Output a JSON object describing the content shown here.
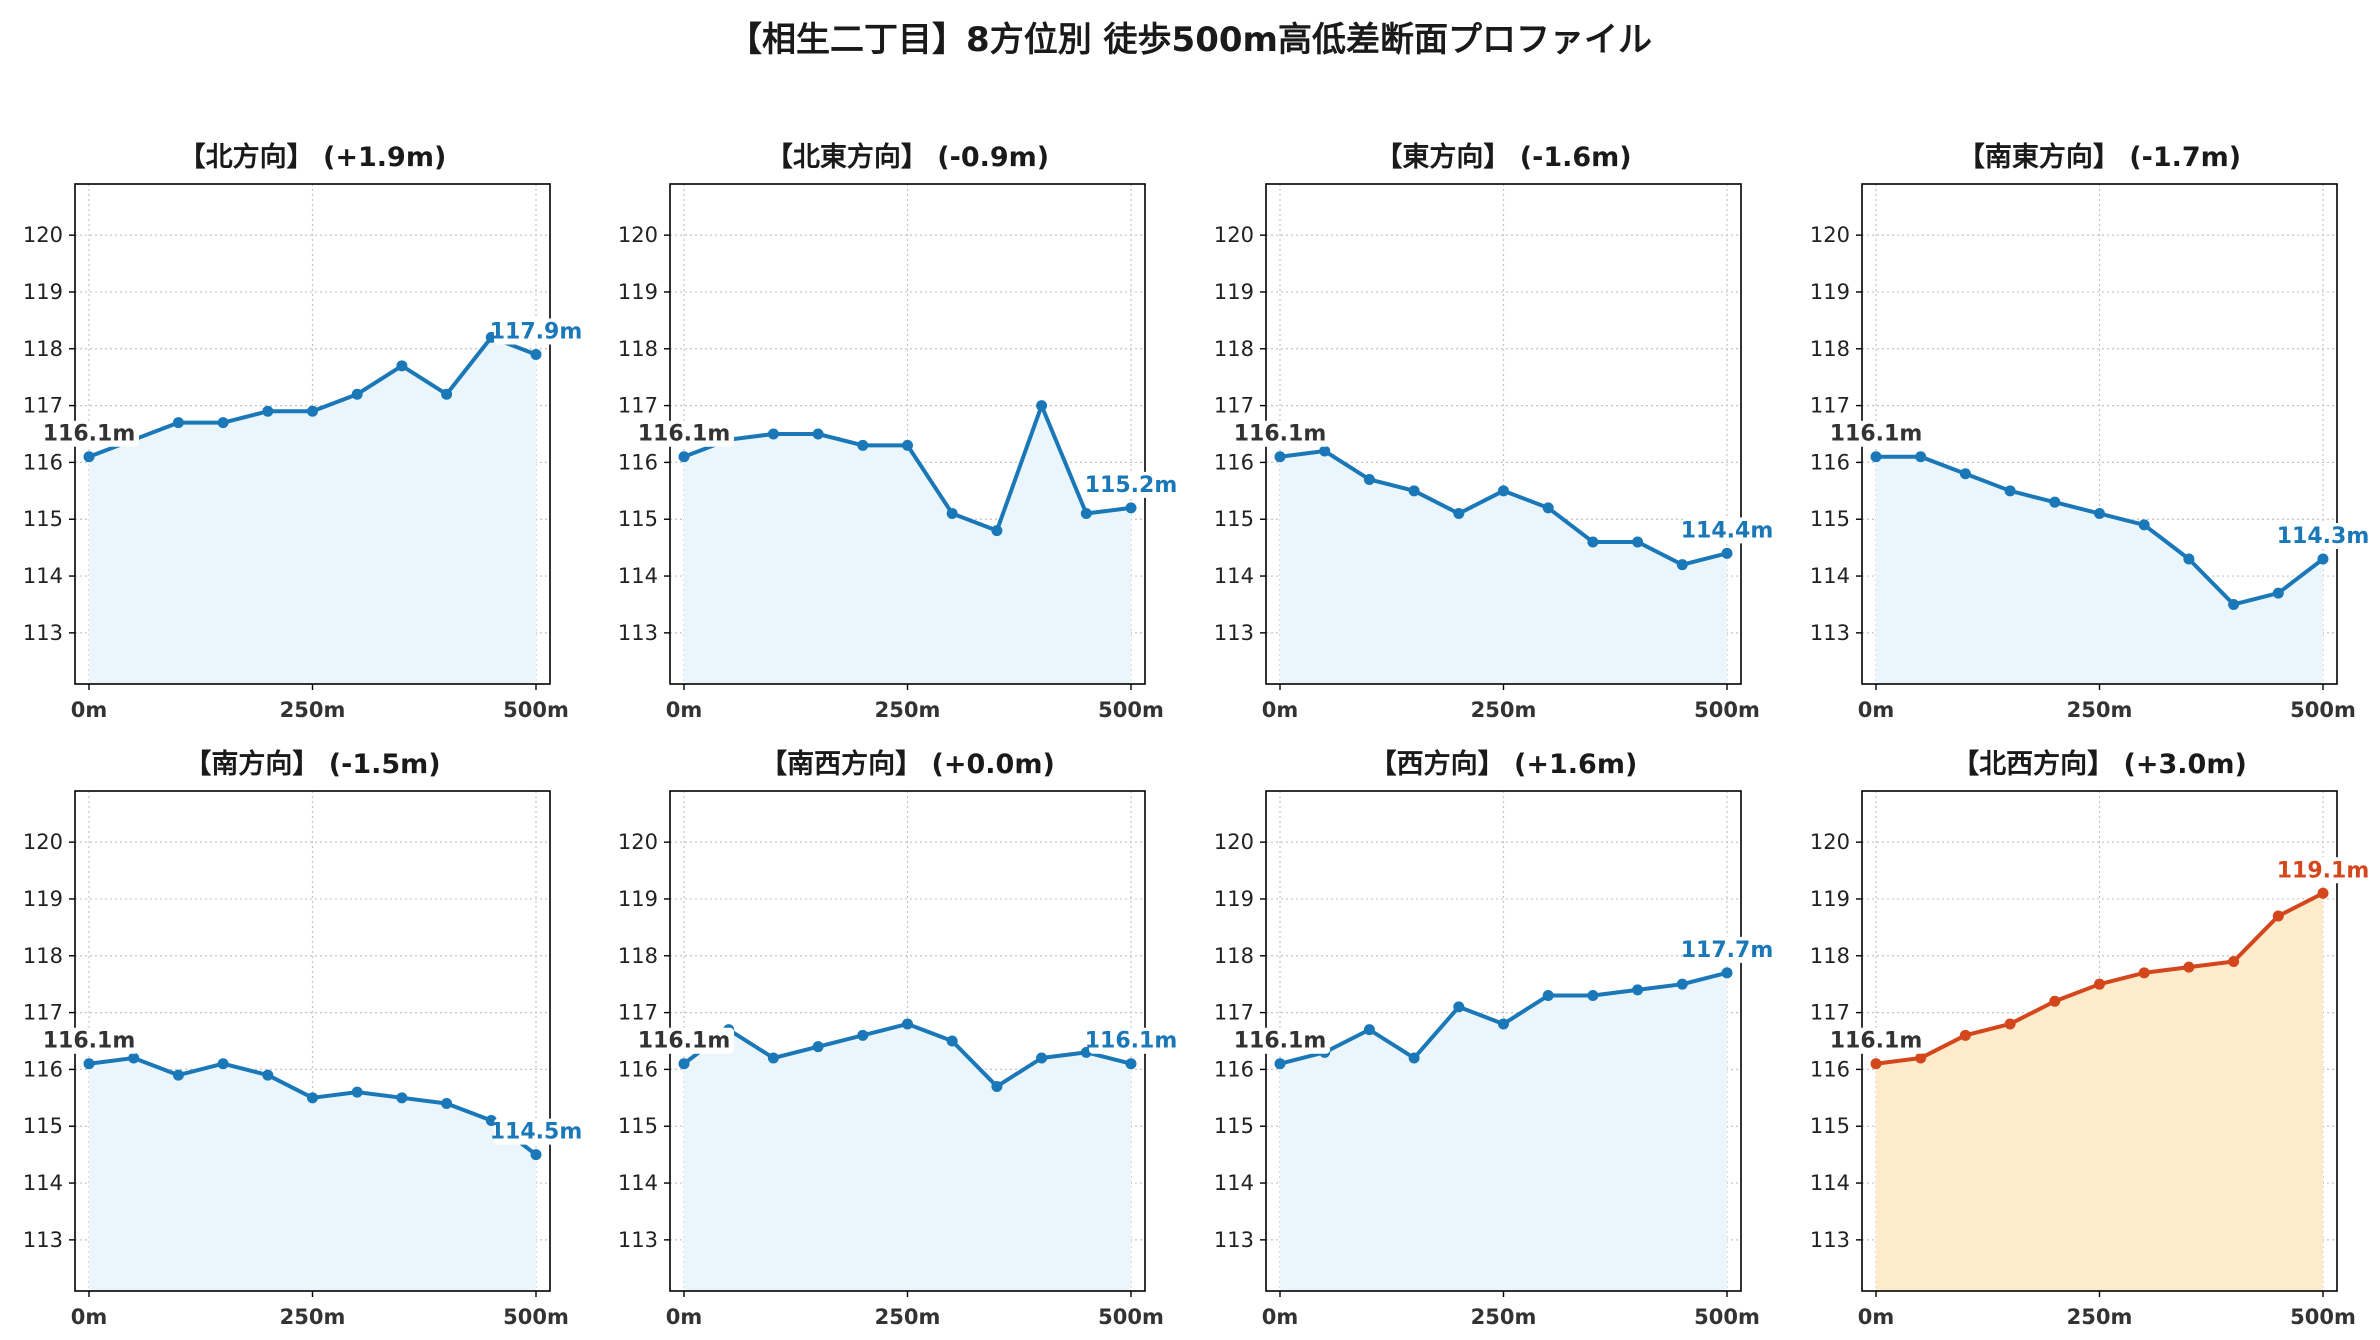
{
  "title": "【相生二丁目】8方位別 徒歩500m高低差断面プロファイル",
  "colors": {
    "normal": "#1a78b8",
    "normal_fill": "#eaf6fb",
    "highlight": "#d4461c",
    "highlight_fill": "#fdebcc",
    "start_label": "#333333"
  },
  "chart_data": [
    {
      "type": "area",
      "title": "【北方向】 (+1.9m)",
      "highlight": false,
      "x": [
        0,
        50,
        100,
        150,
        200,
        250,
        300,
        350,
        400,
        450,
        500
      ],
      "y": [
        116.1,
        116.4,
        116.7,
        116.7,
        116.9,
        116.9,
        117.2,
        117.7,
        117.2,
        118.2,
        117.9
      ],
      "start_label": "116.1m",
      "end_label": "117.9m",
      "xticks": [
        "0m",
        "250m",
        "500m"
      ],
      "ylim": [
        112.1,
        120.9
      ],
      "yticks": [
        113,
        114,
        115,
        116,
        117,
        118,
        119,
        120
      ],
      "grid": true
    },
    {
      "type": "area",
      "title": "【北東方向】 (-0.9m)",
      "highlight": false,
      "x": [
        0,
        50,
        100,
        150,
        200,
        250,
        300,
        350,
        400,
        450,
        500
      ],
      "y": [
        116.1,
        116.4,
        116.5,
        116.5,
        116.3,
        116.3,
        115.1,
        114.8,
        117.0,
        115.1,
        115.2
      ],
      "start_label": "116.1m",
      "end_label": "115.2m",
      "xticks": [
        "0m",
        "250m",
        "500m"
      ],
      "ylim": [
        112.1,
        120.9
      ],
      "yticks": [
        113,
        114,
        115,
        116,
        117,
        118,
        119,
        120
      ],
      "grid": true
    },
    {
      "type": "area",
      "title": "【東方向】 (-1.6m)",
      "highlight": false,
      "x": [
        0,
        50,
        100,
        150,
        200,
        250,
        300,
        350,
        400,
        450,
        500
      ],
      "y": [
        116.1,
        116.2,
        115.7,
        115.5,
        115.1,
        115.5,
        115.2,
        114.6,
        114.6,
        114.2,
        114.4
      ],
      "start_label": "116.1m",
      "end_label": "114.4m",
      "xticks": [
        "0m",
        "250m",
        "500m"
      ],
      "ylim": [
        112.1,
        120.9
      ],
      "yticks": [
        113,
        114,
        115,
        116,
        117,
        118,
        119,
        120
      ],
      "grid": true
    },
    {
      "type": "area",
      "title": "【南東方向】 (-1.7m)",
      "highlight": false,
      "x": [
        0,
        50,
        100,
        150,
        200,
        250,
        300,
        350,
        400,
        450,
        500
      ],
      "y": [
        116.1,
        116.1,
        115.8,
        115.5,
        115.3,
        115.1,
        114.9,
        114.3,
        113.5,
        113.7,
        114.3
      ],
      "start_label": "116.1m",
      "end_label": "114.3m",
      "xticks": [
        "0m",
        "250m",
        "500m"
      ],
      "ylim": [
        112.1,
        120.9
      ],
      "yticks": [
        113,
        114,
        115,
        116,
        117,
        118,
        119,
        120
      ],
      "grid": true
    },
    {
      "type": "area",
      "title": "【南方向】 (-1.5m)",
      "highlight": false,
      "x": [
        0,
        50,
        100,
        150,
        200,
        250,
        300,
        350,
        400,
        450,
        500
      ],
      "y": [
        116.1,
        116.2,
        115.9,
        116.1,
        115.9,
        115.5,
        115.6,
        115.5,
        115.4,
        115.1,
        114.5
      ],
      "start_label": "116.1m",
      "end_label": "114.5m",
      "xticks": [
        "0m",
        "250m",
        "500m"
      ],
      "ylim": [
        112.1,
        120.9
      ],
      "yticks": [
        113,
        114,
        115,
        116,
        117,
        118,
        119,
        120
      ],
      "grid": true
    },
    {
      "type": "area",
      "title": "【南西方向】 (+0.0m)",
      "highlight": false,
      "x": [
        0,
        50,
        100,
        150,
        200,
        250,
        300,
        350,
        400,
        450,
        500
      ],
      "y": [
        116.1,
        116.7,
        116.2,
        116.4,
        116.6,
        116.8,
        116.5,
        115.7,
        116.2,
        116.3,
        116.1
      ],
      "start_label": "116.1m",
      "end_label": "116.1m",
      "xticks": [
        "0m",
        "250m",
        "500m"
      ],
      "ylim": [
        112.1,
        120.9
      ],
      "yticks": [
        113,
        114,
        115,
        116,
        117,
        118,
        119,
        120
      ],
      "grid": true
    },
    {
      "type": "area",
      "title": "【西方向】 (+1.6m)",
      "highlight": false,
      "x": [
        0,
        50,
        100,
        150,
        200,
        250,
        300,
        350,
        400,
        450,
        500
      ],
      "y": [
        116.1,
        116.3,
        116.7,
        116.2,
        117.1,
        116.8,
        117.3,
        117.3,
        117.4,
        117.5,
        117.7
      ],
      "start_label": "116.1m",
      "end_label": "117.7m",
      "xticks": [
        "0m",
        "250m",
        "500m"
      ],
      "ylim": [
        112.1,
        120.9
      ],
      "yticks": [
        113,
        114,
        115,
        116,
        117,
        118,
        119,
        120
      ],
      "grid": true
    },
    {
      "type": "area",
      "title": "【北西方向】 (+3.0m)",
      "highlight": true,
      "x": [
        0,
        50,
        100,
        150,
        200,
        250,
        300,
        350,
        400,
        450,
        500
      ],
      "y": [
        116.1,
        116.2,
        116.6,
        116.8,
        117.2,
        117.5,
        117.7,
        117.8,
        117.9,
        118.7,
        119.1
      ],
      "start_label": "116.1m",
      "end_label": "119.1m",
      "xticks": [
        "0m",
        "250m",
        "500m"
      ],
      "ylim": [
        112.1,
        120.9
      ],
      "yticks": [
        113,
        114,
        115,
        116,
        117,
        118,
        119,
        120
      ],
      "grid": true
    }
  ]
}
